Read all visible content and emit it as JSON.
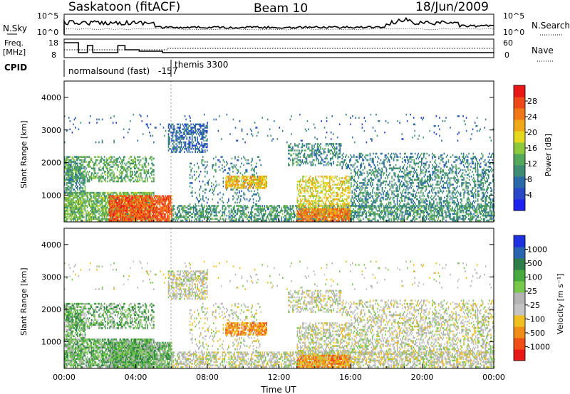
{
  "header": {
    "station": "Saskatoon (fitACF)",
    "beam": "Beam 10",
    "date": "18/Jun/2009"
  },
  "top_panels": {
    "nsky_label": "N.Sky",
    "nsky_ticks": [
      "10^5",
      "10^0"
    ],
    "nsearch_label": "N.Search",
    "nsearch_ticks": [
      "10^5",
      "10^0"
    ],
    "freq_label": "Freq.",
    "freq_unit": "[MHz]",
    "freq_ticks": [
      "18",
      "8"
    ],
    "nave_label": "Nave",
    "nave_ticks": [
      "60",
      "0"
    ],
    "cpid_label": "CPID",
    "cpid_mode_1": "normalsound (fast)",
    "cpid_value": "-157",
    "cpid_mode_2": "themis 3300"
  },
  "colors": {
    "power_scale": [
      "#1e22ee",
      "#2848c8",
      "#2a6aa8",
      "#3e8c74",
      "#54a85a",
      "#8ec83c",
      "#e6d820",
      "#f0a818",
      "#f07818",
      "#ee4818",
      "#e81818"
    ],
    "velocity_scale": [
      "#1e32e0",
      "#2a64b0",
      "#2e7e4a",
      "#46aa3e",
      "#78c84a",
      "#b4b4b4",
      "#c4c4c4",
      "#f0c020",
      "#f08c18",
      "#f05018",
      "#e81818"
    ]
  },
  "chart_data": [
    {
      "type": "heatmap",
      "name": "power",
      "ylabel": "Slant Range [km]",
      "yticks": [
        "1000",
        "2000",
        "3000",
        "4000"
      ],
      "ylim": [
        180,
        4500
      ],
      "xticks": [
        "00:00",
        "04:00",
        "08:00",
        "12:00",
        "16:00",
        "20:00",
        "00:00"
      ],
      "xlim_hours": [
        0,
        24
      ],
      "colorbar": {
        "label": "Power [dB]",
        "ticks": [
          "4",
          "8",
          "12",
          "16",
          "20",
          "24",
          "28"
        ],
        "range": [
          0,
          30
        ]
      }
    },
    {
      "type": "heatmap",
      "name": "velocity",
      "ylabel": "Slant Range [km]",
      "yticks": [
        "1000",
        "2000",
        "3000",
        "4000"
      ],
      "ylim": [
        180,
        4500
      ],
      "xticks": [
        "00:00",
        "04:00",
        "08:00",
        "12:00",
        "16:00",
        "20:00",
        "00:00"
      ],
      "xlabel": "Time UT",
      "xlim_hours": [
        0,
        24
      ],
      "colorbar": {
        "label": "Velocity [m s⁻¹]",
        "ticks": [
          "1000",
          "500",
          "100",
          "25",
          "-25",
          "-100",
          "-500",
          "-1000"
        ]
      }
    }
  ]
}
